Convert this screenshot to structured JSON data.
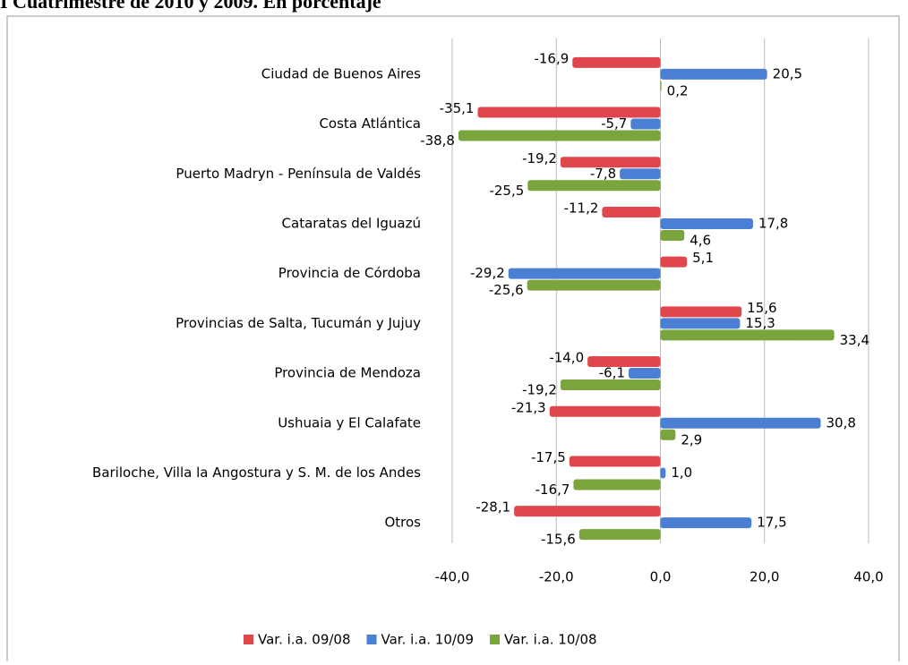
{
  "chart_data": {
    "type": "bar",
    "orientation": "horizontal",
    "title": "I Cuatrimestre de 2010 y 2009. En porcentaje",
    "categories": [
      "Ciudad de Buenos Aires",
      "Costa Atlántica",
      "Puerto Madryn - Península de Valdés",
      "Cataratas del Iguazú",
      "Provincia de Córdoba",
      "Provincias de Salta, Tucumán y Jujuy",
      "Provincia de Mendoza",
      "Ushuaia y El Calafate",
      "Bariloche, Villa la Angostura y S. M. de los Andes",
      "Otros"
    ],
    "series": [
      {
        "name": "Var. i.a. 09/08",
        "color": "#e0474c",
        "values": [
          -16.9,
          -35.1,
          -19.2,
          -11.2,
          5.1,
          15.6,
          -14.0,
          -21.3,
          -17.5,
          -28.1
        ],
        "value_labels": [
          "-16,9",
          "-35,1",
          "-19,2",
          "-11,2",
          "5,1",
          "15,6",
          "-14,0",
          "-21,3",
          "-17,5",
          "-28,1"
        ]
      },
      {
        "name": "Var. i.a. 10/09",
        "color": "#4a7fd4",
        "values": [
          20.5,
          -5.7,
          -7.8,
          17.8,
          -29.2,
          15.3,
          -6.1,
          30.8,
          1.0,
          17.5
        ],
        "value_labels": [
          "20,5",
          "-5,7",
          "-7,8",
          "17,8",
          "-29,2",
          "15,3",
          "-6,1",
          "30,8",
          "1,0",
          "17,5"
        ]
      },
      {
        "name": "Var. i.a. 10/08",
        "color": "#7aa43c",
        "values": [
          0.2,
          -38.8,
          -25.5,
          4.6,
          -25.6,
          33.4,
          -19.2,
          2.9,
          -16.7,
          -15.6
        ],
        "value_labels": [
          "0,2",
          "-38,8",
          "-25,5",
          "4,6",
          "-25,6",
          "33,4",
          "-19,2",
          "2,9",
          "-16,7",
          "-15,6"
        ]
      }
    ],
    "xlim": [
      -40,
      40
    ],
    "xticks": [
      {
        "value": -40,
        "label": "-40,0"
      },
      {
        "value": -20,
        "label": "-20,0"
      },
      {
        "value": 0,
        "label": "0,0"
      },
      {
        "value": 20,
        "label": "20,0"
      },
      {
        "value": 40,
        "label": "40,0"
      }
    ],
    "legend": "bottom"
  }
}
